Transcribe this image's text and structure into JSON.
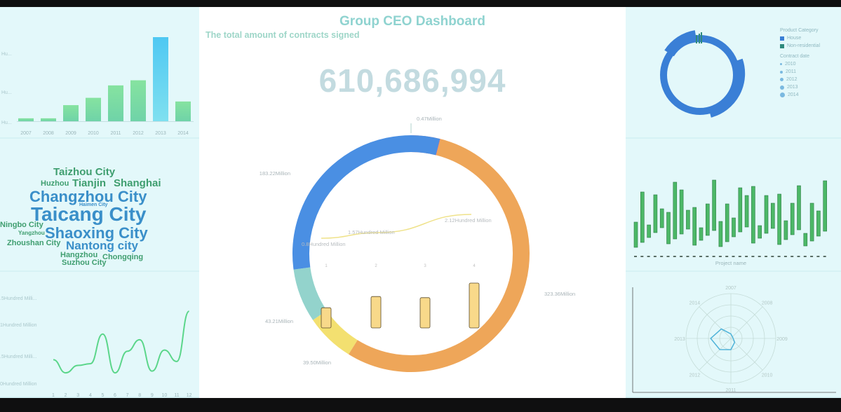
{
  "dashboard": {
    "title": "Group CEO Dashboard",
    "subtitle": "The total amount of contracts signed",
    "total": "610,686,994"
  },
  "top_left": {
    "title": "",
    "y_ticks": [
      "Hu...",
      "Hu...",
      "Hu..."
    ],
    "chart_data": {
      "type": "bar",
      "categories": [
        "2007",
        "2008",
        "2009",
        "2010",
        "2011",
        "2012",
        "2013",
        "2014"
      ],
      "values": [
        0.4,
        0.4,
        2.2,
        3.2,
        4.9,
        5.6,
        11.5,
        2.7
      ]
    }
  },
  "word_cloud": {
    "title": "",
    "words": [
      {
        "text": "Taizhou City",
        "color": "#3f9e6f"
      },
      {
        "text": "Huzhou",
        "color": "#3f9e6f"
      },
      {
        "text": "Tianjin",
        "color": "#3f9e6f"
      },
      {
        "text": "Shanghai",
        "color": "#3f9e6f"
      },
      {
        "text": "Changzhou City",
        "color": "#3a8fc9"
      },
      {
        "text": "Haimen City",
        "color": "#3a8fc9"
      },
      {
        "text": "Taicang City",
        "color": "#3a8fc9"
      },
      {
        "text": "Ningbo City",
        "color": "#3f9e6f"
      },
      {
        "text": "Yangzhou",
        "color": "#3f9e6f"
      },
      {
        "text": "Shaoxing City",
        "color": "#3a8fc9"
      },
      {
        "text": "Zhoushan City",
        "color": "#3f9e6f"
      },
      {
        "text": "Nantong city",
        "color": "#3a8fc9"
      },
      {
        "text": "Hangzhou",
        "color": "#3f9e6f"
      },
      {
        "text": "Chongqing",
        "color": "#3f9e6f"
      },
      {
        "text": "Suzhou City",
        "color": "#3f9e6f"
      }
    ]
  },
  "bottom_left": {
    "title": "",
    "y_ticks": [
      ".5Hundred Milli...",
      "1Hundred Million",
      ".5Hundred Milli...",
      "0Hundred Million"
    ],
    "chart_data": {
      "type": "line",
      "x": [
        "1",
        "2",
        "3",
        "4",
        "5",
        "6",
        "7",
        "8",
        "9",
        "10",
        "11",
        "12"
      ],
      "y": [
        0.45,
        0.22,
        0.35,
        0.38,
        0.9,
        0.22,
        0.6,
        0.8,
        0.25,
        0.62,
        0.42,
        1.3
      ],
      "ylim": [
        0,
        1.5
      ]
    }
  },
  "center_chart": {
    "chart_data": {
      "type": "pie",
      "slices": [
        {
          "label": "0.47Million",
          "value": 0.47,
          "color": "#e27b72"
        },
        {
          "label": "323.36Million",
          "value": 323.36,
          "color": "#eea659"
        },
        {
          "label": "39.50Million",
          "value": 39.5,
          "color": "#f3e070"
        },
        {
          "label": "43.21Million",
          "value": 43.21,
          "color": "#93d3cc"
        },
        {
          "label": "183.22Million",
          "value": 183.22,
          "color": "#4a8fe3"
        }
      ],
      "overlay_line": {
        "labels": [
          "0.8Hundred Million",
          "1.57Hundred Million",
          "2.12Hundred Million"
        ],
        "values": [
          0.8,
          1.57,
          2.12
        ]
      },
      "overlay_bars": {
        "categories": [
          "1",
          "2",
          "3",
          "4"
        ],
        "values": [
          0.9,
          1.4,
          1.35,
          2.0
        ]
      }
    }
  },
  "top_right": {
    "title": "",
    "legend_category_title": "Product Category",
    "legend_categories": [
      {
        "label": "House",
        "color": "#3a7fd6"
      },
      {
        "label": "Non-residential",
        "color": "#2e8a7d"
      }
    ],
    "legend_date_title": "Contract date",
    "legend_dates": [
      "2010",
      "2011",
      "2012",
      "2013",
      "2014"
    ]
  },
  "middle_right": {
    "title": "",
    "xlabel": "Project name",
    "chart_data": {
      "type": "bar",
      "values": [
        4,
        8,
        2,
        6,
        3,
        5,
        9,
        7,
        3,
        6,
        2,
        5,
        8,
        4,
        6,
        3,
        7,
        5,
        9,
        2,
        6,
        4,
        8,
        3,
        5,
        7,
        2,
        6,
        4,
        8
      ]
    }
  },
  "bottom_right": {
    "title": "",
    "radar_labels": [
      "2007",
      "2008",
      "2009",
      "2010",
      "2011",
      "2012",
      "2013",
      "2014"
    ],
    "chart_data": {
      "type": "radar",
      "values": [
        0.1,
        0.05,
        0.05,
        0.12,
        0.25,
        0.35,
        0.45,
        0.3
      ]
    }
  }
}
